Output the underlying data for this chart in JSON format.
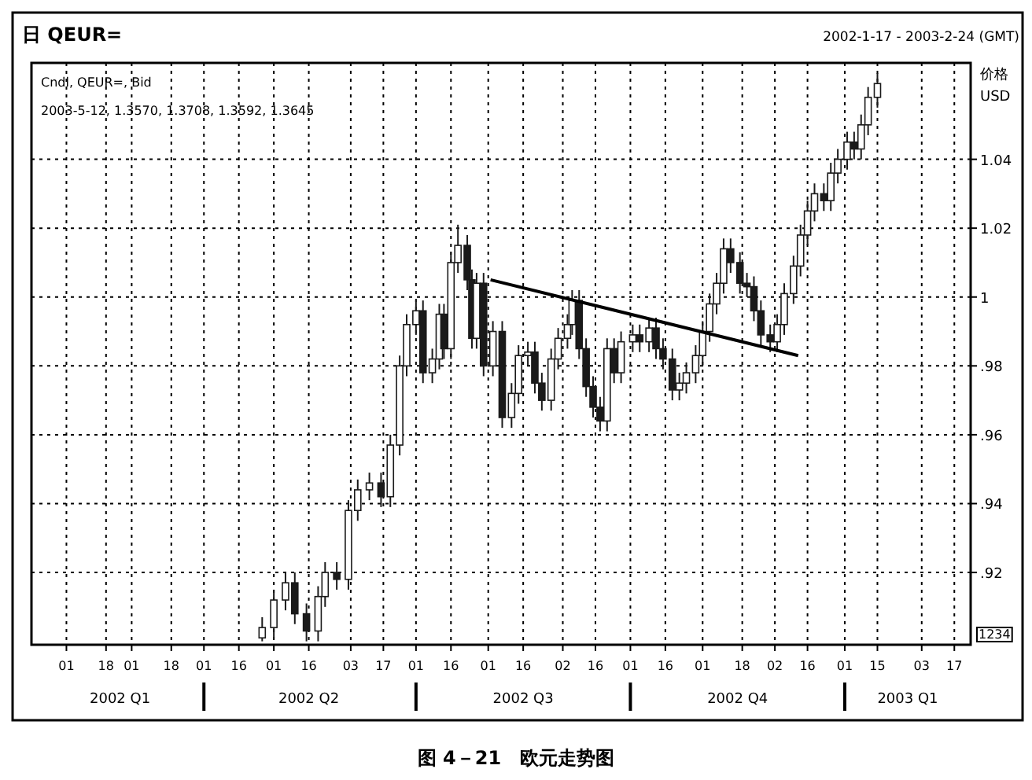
{
  "chart_data": {
    "type": "candlestick",
    "title": "日 QEUR=",
    "subtitle": "2002-1-17 - 2003-2-24 (GMT)",
    "ylabel": "价格 USD",
    "annotations": [
      "Cndl, QEUR=, Bid",
      "2003-5-12, 1.3570, 1.3708, 1.3592, 1.3645",
      "1234",
      "图 4－21　欧元走势图"
    ],
    "xlim": [
      "2002-01-17",
      "2003-02-24"
    ],
    "xticks": [
      {
        "value": "2002-02-01",
        "label": "01"
      },
      {
        "value": "2002-02-18",
        "label": "18"
      },
      {
        "value": "2002-03-01",
        "label": "01"
      },
      {
        "value": "2002-03-18",
        "label": "18"
      },
      {
        "value": "2002-04-01",
        "label": "01"
      },
      {
        "value": "2002-04-16",
        "label": "16"
      },
      {
        "value": "2002-05-01",
        "label": "01"
      },
      {
        "value": "2002-05-16",
        "label": "16"
      },
      {
        "value": "2002-06-03",
        "label": "03"
      },
      {
        "value": "2002-06-17",
        "label": "17"
      },
      {
        "value": "2002-07-01",
        "label": "01"
      },
      {
        "value": "2002-07-16",
        "label": "16"
      },
      {
        "value": "2002-08-01",
        "label": "01"
      },
      {
        "value": "2002-08-16",
        "label": "16"
      },
      {
        "value": "2002-09-02",
        "label": "02"
      },
      {
        "value": "2002-09-16",
        "label": "16"
      },
      {
        "value": "2002-10-01",
        "label": "01"
      },
      {
        "value": "2002-10-16",
        "label": "16"
      },
      {
        "value": "2002-11-01",
        "label": "01"
      },
      {
        "value": "2002-11-18",
        "label": "18"
      },
      {
        "value": "2002-12-02",
        "label": "02"
      },
      {
        "value": "2002-12-16",
        "label": "16"
      },
      {
        "value": "2003-01-01",
        "label": "01"
      },
      {
        "value": "2003-01-15",
        "label": "15"
      },
      {
        "value": "2003-02-03",
        "label": "03"
      },
      {
        "value": "2003-02-17",
        "label": "17"
      }
    ],
    "x2lim": [
      "2002-01-17",
      "2003-02-24"
    ],
    "x2ticks": [
      {
        "value": "2002-02-24",
        "label": "2002 Q1"
      },
      {
        "value": "2002-04-01",
        "label": null
      },
      {
        "value": "2002-05-16",
        "label": "2002 Q2"
      },
      {
        "value": "2002-07-01",
        "label": null
      },
      {
        "value": "2002-08-16",
        "label": "2002 Q3"
      },
      {
        "value": "2002-10-01",
        "label": null
      },
      {
        "value": "2002-11-16",
        "label": "2002 Q4"
      },
      {
        "value": "2003-01-01",
        "label": null
      },
      {
        "value": "2003-01-28",
        "label": "2003 Q1"
      }
    ],
    "ylim": [
      0.899,
      1.068
    ],
    "yticks": [
      {
        "value": 0.92,
        "label": ".92"
      },
      {
        "value": 0.94,
        "label": ".94"
      },
      {
        "value": 0.96,
        "label": ".96"
      },
      {
        "value": 0.98,
        "label": ".98"
      },
      1,
      1.02,
      1.04
    ],
    "grid": true,
    "series": [
      {
        "color": "#1a1a1a",
        "x": [
          "2002-04-26",
          "2002-05-01",
          "2002-05-06",
          "2002-05-10",
          "2002-05-15",
          "2002-05-20",
          "2002-05-23",
          "2002-05-28",
          "2002-06-02",
          "2002-06-06",
          "2002-06-11",
          "2002-06-16",
          "2002-06-20",
          "2002-06-24",
          "2002-06-27",
          "2002-07-01",
          "2002-07-04",
          "2002-07-08",
          "2002-07-11",
          "2002-07-13",
          "2002-07-16",
          "2002-07-19",
          "2002-07-23",
          "2002-07-25",
          "2002-07-27",
          "2002-07-30",
          "2002-08-03",
          "2002-08-07",
          "2002-08-11",
          "2002-08-14",
          "2002-08-18",
          "2002-08-21",
          "2002-08-24",
          "2002-08-28",
          "2002-08-31",
          "2002-09-04",
          "2002-09-06",
          "2002-09-09",
          "2002-09-12",
          "2002-09-15",
          "2002-09-18",
          "2002-09-21",
          "2002-09-24",
          "2002-09-27",
          "2002-10-02",
          "2002-10-05",
          "2002-10-09",
          "2002-10-12",
          "2002-10-15",
          "2002-10-19",
          "2002-10-22",
          "2002-10-25",
          "2002-10-29",
          "2002-11-01",
          "2002-11-04",
          "2002-11-07",
          "2002-11-10",
          "2002-11-13",
          "2002-11-17",
          "2002-11-20",
          "2002-11-23",
          "2002-11-26",
          "2002-11-30",
          "2002-12-03",
          "2002-12-06",
          "2002-12-10",
          "2002-12-13",
          "2002-12-16",
          "2002-12-19",
          "2002-12-23",
          "2002-12-26",
          "2002-12-29",
          "2003-01-02",
          "2003-01-05",
          "2003-01-08",
          "2003-01-11",
          "2003-01-15"
        ],
        "ohlc": [
          [
            0.901,
            0.907,
            0.9,
            0.904
          ],
          [
            0.904,
            0.915,
            0.901,
            0.912
          ],
          [
            0.912,
            0.92,
            0.909,
            0.917
          ],
          [
            0.917,
            0.92,
            0.905,
            0.908
          ],
          [
            0.908,
            0.911,
            0.9,
            0.903
          ],
          [
            0.903,
            0.916,
            0.9,
            0.913
          ],
          [
            0.913,
            0.923,
            0.91,
            0.92
          ],
          [
            0.92,
            0.923,
            0.915,
            0.918
          ],
          [
            0.918,
            0.941,
            0.915,
            0.938
          ],
          [
            0.938,
            0.947,
            0.935,
            0.944
          ],
          [
            0.944,
            0.949,
            0.941,
            0.946
          ],
          [
            0.946,
            0.949,
            0.939,
            0.942
          ],
          [
            0.942,
            0.96,
            0.939,
            0.957
          ],
          [
            0.957,
            0.983,
            0.954,
            0.98
          ],
          [
            0.98,
            0.995,
            0.977,
            0.992
          ],
          [
            0.992,
            0.999,
            0.989,
            0.996
          ],
          [
            0.996,
            0.999,
            0.975,
            0.978
          ],
          [
            0.978,
            0.985,
            0.975,
            0.982
          ],
          [
            0.982,
            0.998,
            0.979,
            0.995
          ],
          [
            0.995,
            0.998,
            0.982,
            0.985
          ],
          [
            0.985,
            1.013,
            0.982,
            1.01
          ],
          [
            1.01,
            1.021,
            1.007,
            1.015
          ],
          [
            1.015,
            1.018,
            1.002,
            1.005
          ],
          [
            1.005,
            1.008,
            0.985,
            0.988
          ],
          [
            0.988,
            1.007,
            0.985,
            1.004
          ],
          [
            1.004,
            1.007,
            0.977,
            0.98
          ],
          [
            0.98,
            0.993,
            0.977,
            0.99
          ],
          [
            0.99,
            0.993,
            0.962,
            0.965
          ],
          [
            0.965,
            0.975,
            0.962,
            0.972
          ],
          [
            0.972,
            0.986,
            0.969,
            0.983
          ],
          [
            0.983,
            0.987,
            0.98,
            0.984
          ],
          [
            0.984,
            0.987,
            0.972,
            0.975
          ],
          [
            0.975,
            0.978,
            0.967,
            0.97
          ],
          [
            0.97,
            0.985,
            0.967,
            0.982
          ],
          [
            0.982,
            0.991,
            0.979,
            0.988
          ],
          [
            0.988,
            0.995,
            0.985,
            0.992
          ],
          [
            0.992,
            1.002,
            0.989,
            0.999
          ],
          [
            0.999,
            1.002,
            0.982,
            0.985
          ],
          [
            0.985,
            0.988,
            0.971,
            0.974
          ],
          [
            0.974,
            0.977,
            0.965,
            0.968
          ],
          [
            0.968,
            0.971,
            0.961,
            0.964
          ],
          [
            0.964,
            0.988,
            0.961,
            0.985
          ],
          [
            0.985,
            0.988,
            0.975,
            0.978
          ],
          [
            0.978,
            0.99,
            0.975,
            0.987
          ],
          [
            0.987,
            0.992,
            0.984,
            0.989
          ],
          [
            0.989,
            0.992,
            0.984,
            0.987
          ],
          [
            0.987,
            0.994,
            0.984,
            0.991
          ],
          [
            0.991,
            0.994,
            0.982,
            0.985
          ],
          [
            0.985,
            0.988,
            0.979,
            0.982
          ],
          [
            0.982,
            0.985,
            0.97,
            0.973
          ],
          [
            0.973,
            0.978,
            0.97,
            0.975
          ],
          [
            0.975,
            0.981,
            0.972,
            0.978
          ],
          [
            0.978,
            0.986,
            0.975,
            0.983
          ],
          [
            0.983,
            0.993,
            0.98,
            0.99
          ],
          [
            0.99,
            1.001,
            0.987,
            0.998
          ],
          [
            0.998,
            1.007,
            0.995,
            1.004
          ],
          [
            1.004,
            1.017,
            1.001,
            1.014
          ],
          [
            1.014,
            1.017,
            1.007,
            1.01
          ],
          [
            1.01,
            1.013,
            1.001,
            1.004
          ],
          [
            1.004,
            1.007,
            1.0,
            1.003
          ],
          [
            1.003,
            1.006,
            0.993,
            0.996
          ],
          [
            0.996,
            0.999,
            0.986,
            0.989
          ],
          [
            0.989,
            0.992,
            0.984,
            0.987
          ],
          [
            0.987,
            0.995,
            0.984,
            0.992
          ],
          [
            0.992,
            1.004,
            0.989,
            1.001
          ],
          [
            1.001,
            1.012,
            0.998,
            1.009
          ],
          [
            1.009,
            1.021,
            1.006,
            1.018
          ],
          [
            1.018,
            1.028,
            1.015,
            1.025
          ],
          [
            1.025,
            1.033,
            1.022,
            1.03
          ],
          [
            1.03,
            1.033,
            1.025,
            1.028
          ],
          [
            1.028,
            1.039,
            1.025,
            1.036
          ],
          [
            1.036,
            1.043,
            1.033,
            1.04
          ],
          [
            1.04,
            1.048,
            1.037,
            1.045
          ],
          [
            1.045,
            1.048,
            1.04,
            1.043
          ],
          [
            1.043,
            1.053,
            1.04,
            1.05
          ],
          [
            1.05,
            1.061,
            1.047,
            1.058
          ],
          [
            1.058,
            1.065,
            1.055,
            1.062
          ]
        ]
      },
      {
        "type": "line",
        "color": "#000000",
        "x": [
          "2002-08-02",
          "2002-12-12"
        ],
        "values": [
          1.005,
          0.983
        ]
      }
    ]
  }
}
